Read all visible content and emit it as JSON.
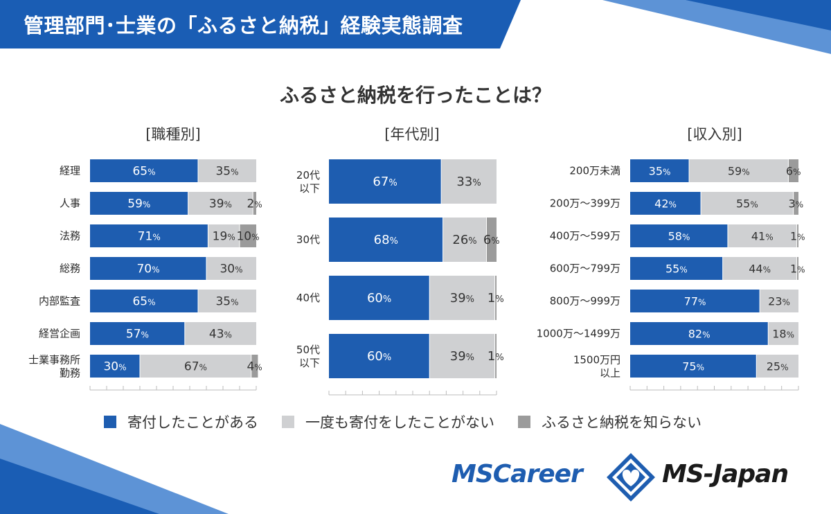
{
  "header": {
    "title": "管理部門･士業の「ふるさと納税」経験実態調査"
  },
  "question": "ふるさと納税を行ったことは？",
  "colors": {
    "gave": "#1e5db0",
    "never": "#cfd0d2",
    "unknown": "#9b9b9b",
    "banner": "#1a5db4"
  },
  "legend": [
    {
      "label": "寄付したことがある",
      "color": "#1e5db0"
    },
    {
      "label": "一度も寄付をしたことがない",
      "color": "#cfd0d2"
    },
    {
      "label": "ふるさと納税を知らない",
      "color": "#9b9b9b"
    }
  ],
  "logos": {
    "left": "MSCareer",
    "right": "MS-Japan"
  },
  "chart_data": [
    {
      "type": "bar",
      "stacked": true,
      "orientation": "horizontal",
      "title": "[職種別]",
      "categories": [
        "経理",
        "人事",
        "法務",
        "総務",
        "内部監査",
        "経営企画",
        "士業事務所\n勤務"
      ],
      "series": [
        {
          "name": "寄付したことがある",
          "values": [
            65,
            59,
            71,
            70,
            65,
            57,
            30
          ]
        },
        {
          "name": "一度も寄付をしたことがない",
          "values": [
            35,
            39,
            19,
            30,
            35,
            43,
            67
          ]
        },
        {
          "name": "ふるさと納税を知らない",
          "values": [
            0,
            2,
            10,
            0,
            0,
            0,
            4
          ]
        }
      ],
      "xlim": [
        0,
        100
      ]
    },
    {
      "type": "bar",
      "stacked": true,
      "orientation": "horizontal",
      "title": "[年代別]",
      "categories": [
        "20代\n以下",
        "30代",
        "40代",
        "50代\n以下"
      ],
      "series": [
        {
          "name": "寄付したことがある",
          "values": [
            67,
            68,
            60,
            60
          ]
        },
        {
          "name": "一度も寄付をしたことがない",
          "values": [
            33,
            26,
            39,
            39
          ]
        },
        {
          "name": "ふるさと納税を知らない",
          "values": [
            0,
            6,
            1,
            1
          ]
        }
      ],
      "xlim": [
        0,
        100
      ]
    },
    {
      "type": "bar",
      "stacked": true,
      "orientation": "horizontal",
      "title": "[収入別]",
      "categories": [
        "200万未満",
        "200万～399万",
        "400万～599万",
        "600万～799万",
        "800万～999万",
        "1000万～1499万",
        "1500万円\n以上"
      ],
      "series": [
        {
          "name": "寄付したことがある",
          "values": [
            35,
            42,
            58,
            55,
            77,
            82,
            75
          ]
        },
        {
          "name": "一度も寄付をしたことがない",
          "values": [
            59,
            55,
            41,
            44,
            23,
            18,
            25
          ]
        },
        {
          "name": "ふるさと納税を知らない",
          "values": [
            6,
            3,
            1,
            1,
            0,
            0,
            0
          ]
        }
      ],
      "xlim": [
        0,
        100
      ]
    }
  ]
}
